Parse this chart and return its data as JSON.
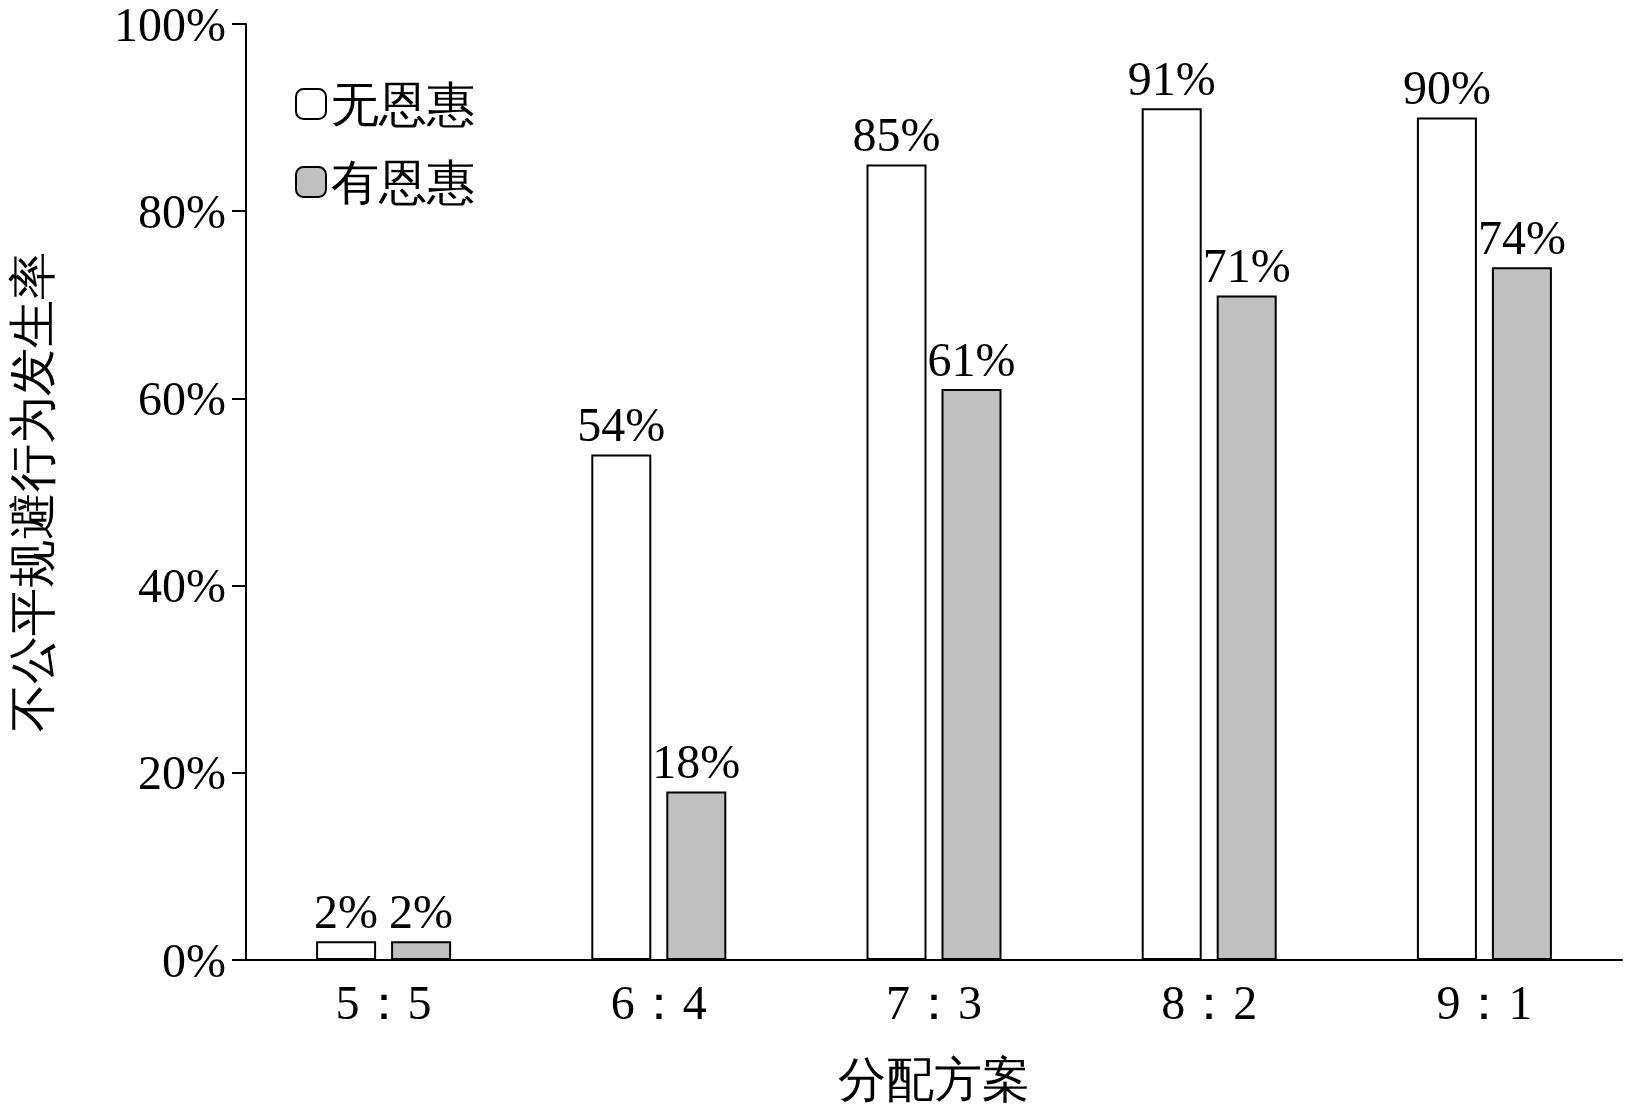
{
  "chart_data": {
    "type": "bar",
    "xlabel": "分配方案",
    "ylabel": "不公平规避行为发生率",
    "categories": [
      "5：5",
      "6：4",
      "7：3",
      "8：2",
      "9：1"
    ],
    "series": [
      {
        "name": "无恩惠",
        "color": "#ffffff",
        "values": [
          2,
          54,
          85,
          91,
          90
        ],
        "value_labels": [
          "2%",
          "54%",
          "85%",
          "91%",
          "90%"
        ]
      },
      {
        "name": "有恩惠",
        "color": "#c0c0c0",
        "values": [
          2,
          18,
          61,
          71,
          74
        ],
        "value_labels": [
          "2%",
          "18%",
          "61%",
          "71%",
          "74%"
        ]
      }
    ],
    "ylim": [
      0,
      100
    ],
    "yticks": [
      {
        "value": 0,
        "label": "0%"
      },
      {
        "value": 20,
        "label": "20%"
      },
      {
        "value": 40,
        "label": "40%"
      },
      {
        "value": 60,
        "label": "60%"
      },
      {
        "value": 80,
        "label": "80%"
      },
      {
        "value": 100,
        "label": "100%"
      }
    ],
    "grid": false,
    "legend": "top left"
  }
}
